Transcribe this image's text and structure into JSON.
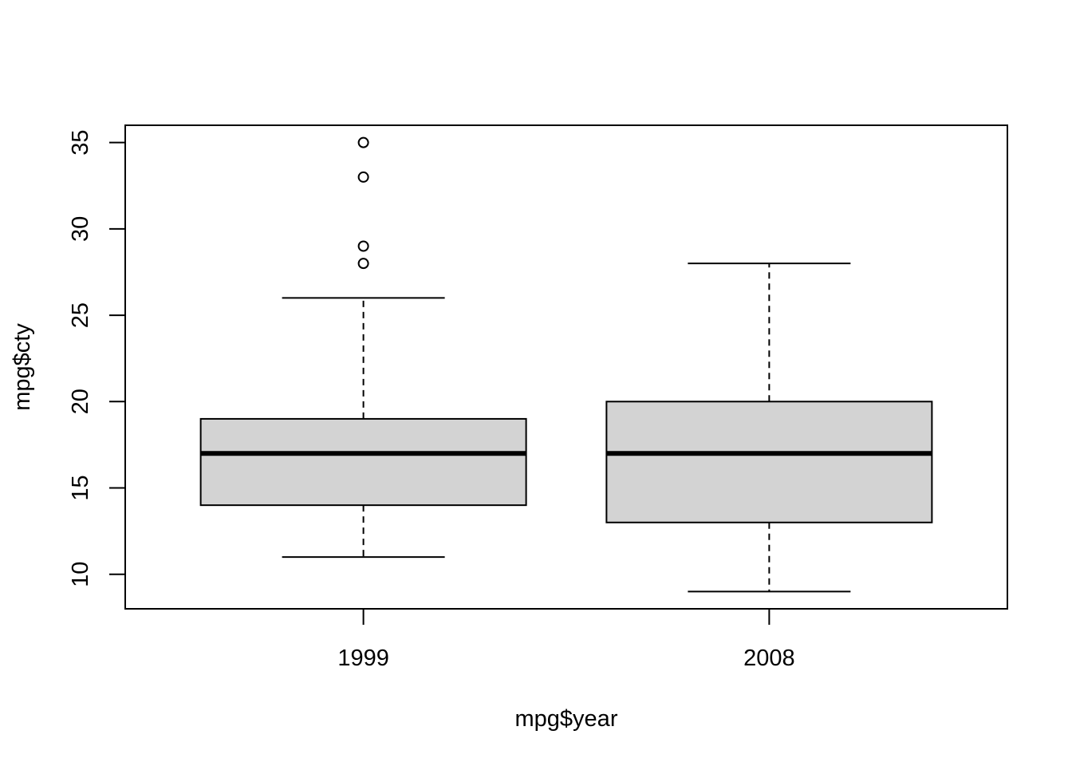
{
  "chart_data": {
    "type": "box",
    "title": "",
    "xlabel": "mpg$year",
    "ylabel": "mpg$cty",
    "categories": [
      "1999",
      "2008"
    ],
    "boxes": [
      {
        "category": "1999",
        "whisker_low": 11,
        "q1": 14,
        "median": 17,
        "q3": 19,
        "whisker_high": 26,
        "outliers": [
          28,
          29,
          33,
          35
        ]
      },
      {
        "category": "2008",
        "whisker_low": 9,
        "q1": 13,
        "median": 17,
        "q3": 20,
        "whisker_high": 28,
        "outliers": []
      }
    ],
    "y_ticks": [
      "10",
      "15",
      "20",
      "25",
      "30",
      "35"
    ],
    "ylim": [
      8,
      36
    ],
    "grid": false,
    "legend": "none",
    "box_fill": "#d3d3d3",
    "line_color": "#000000"
  }
}
